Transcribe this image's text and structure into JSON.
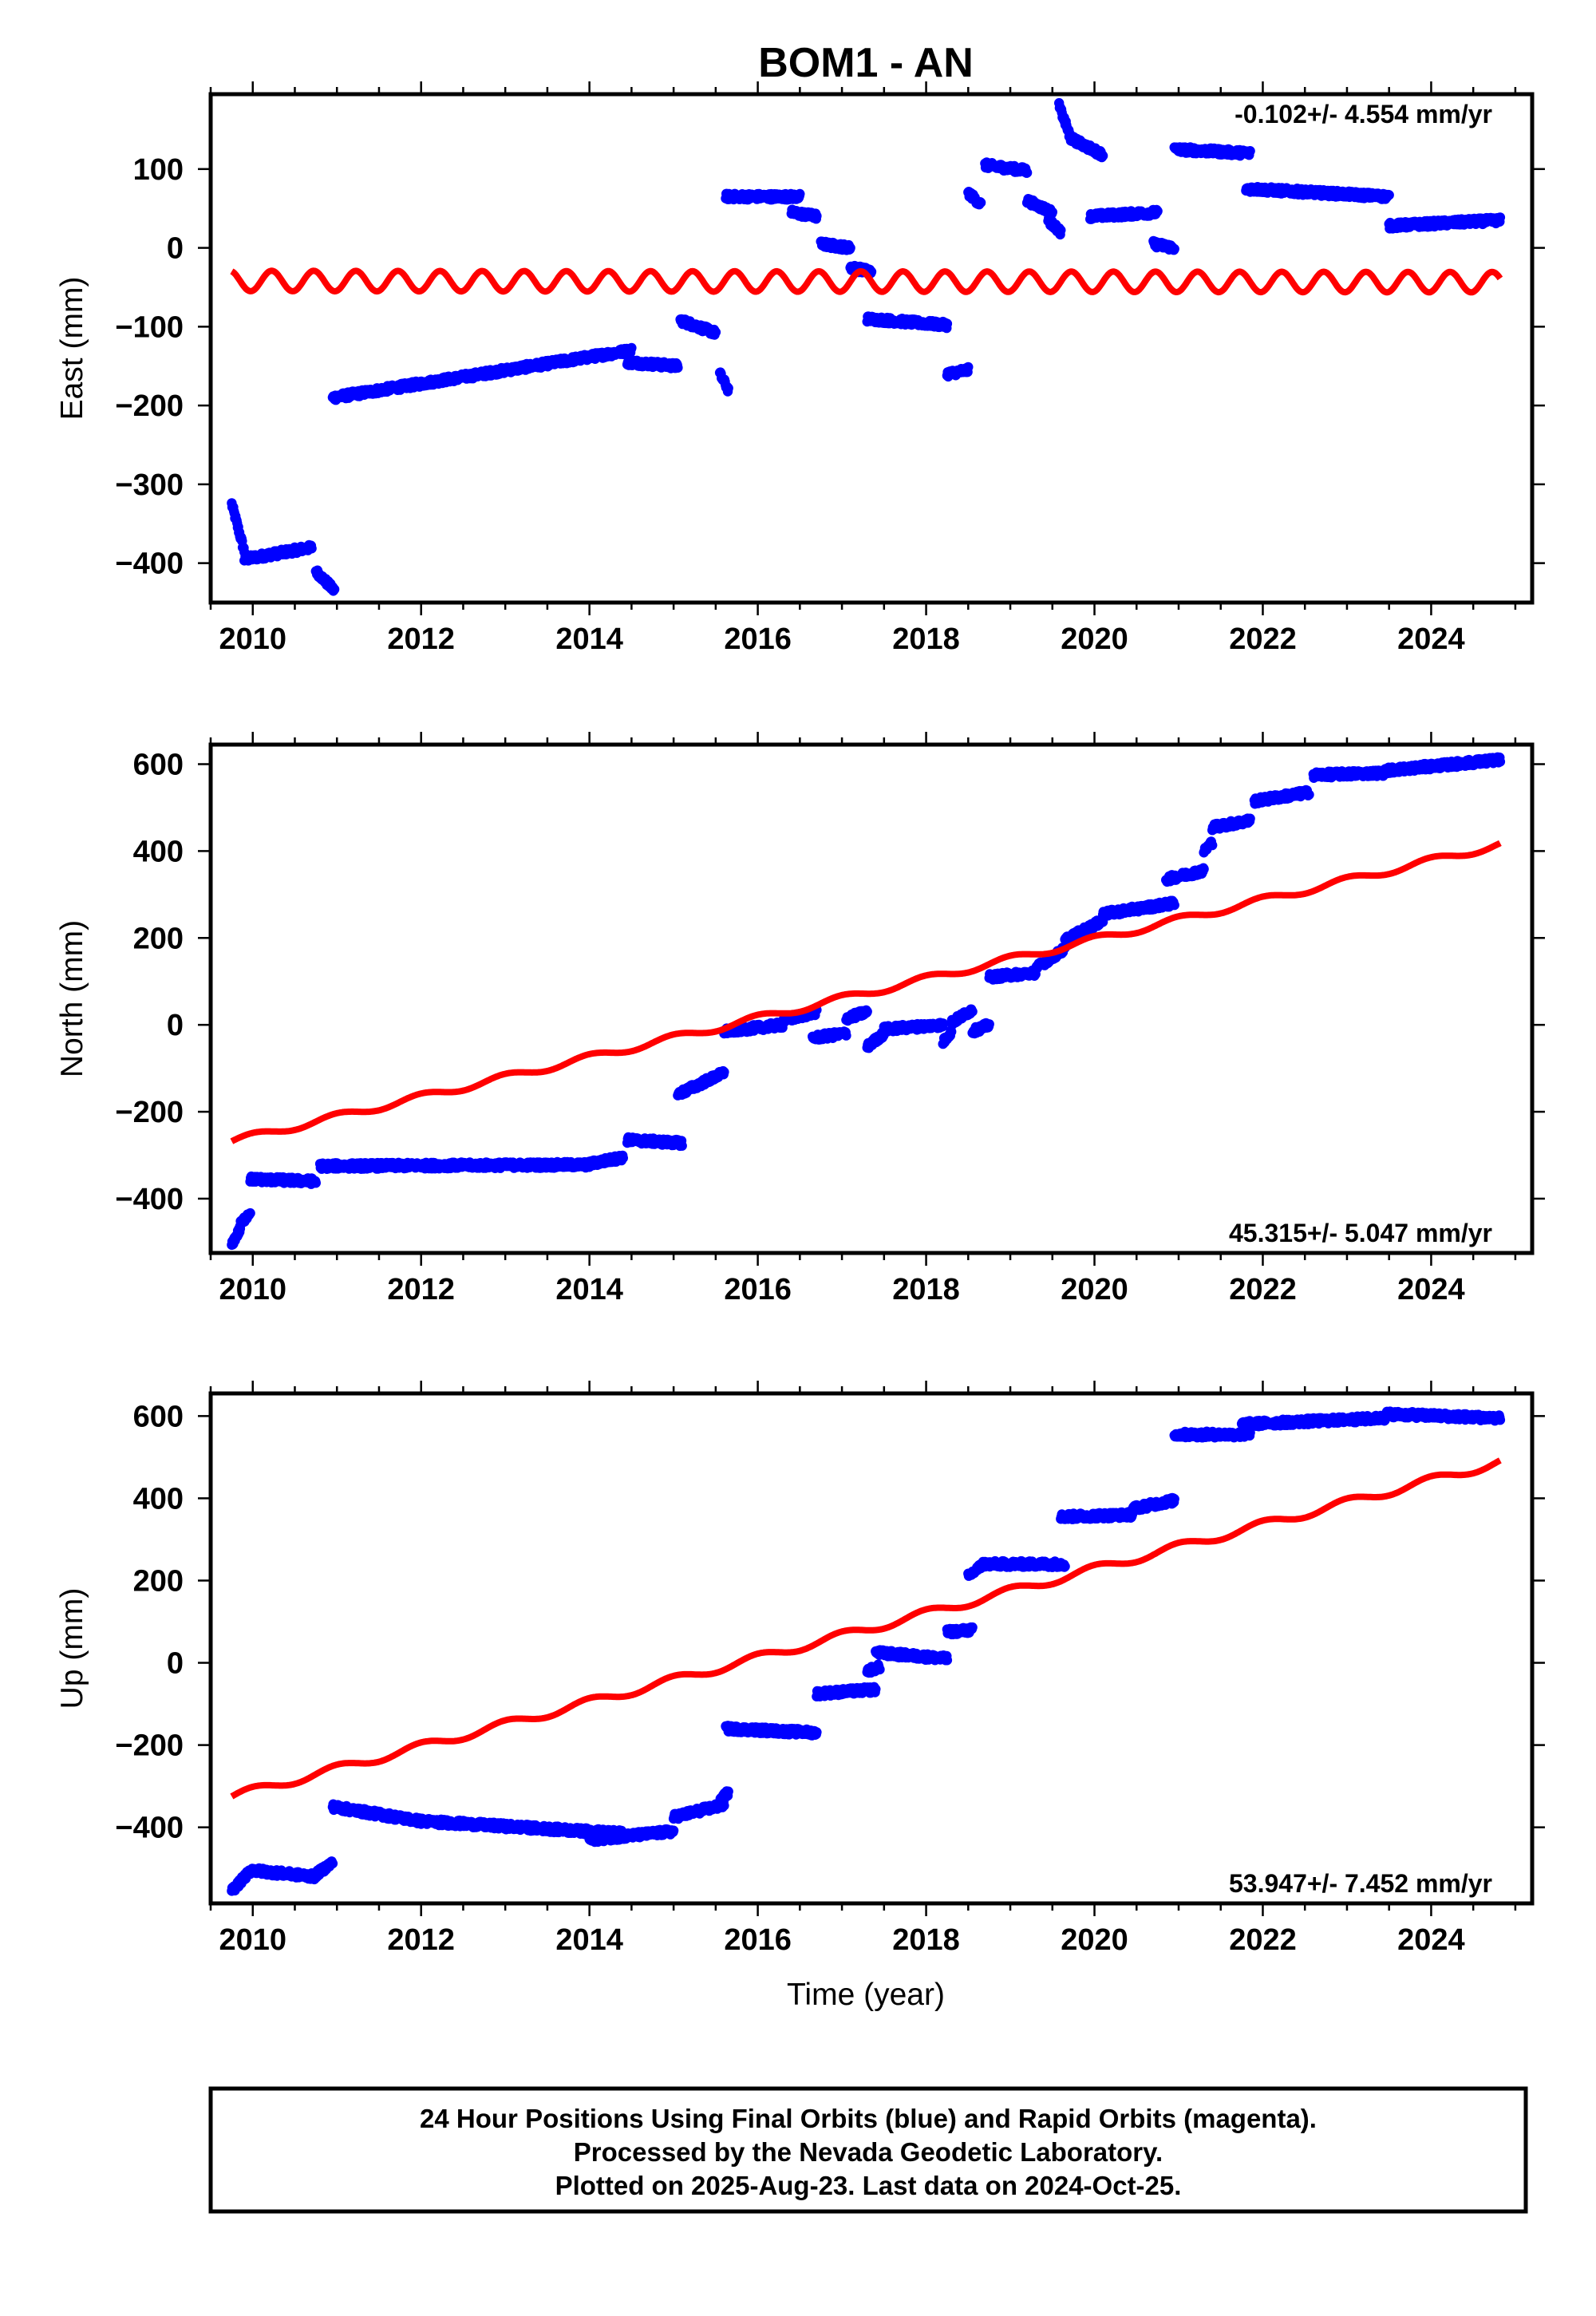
{
  "title": "BOM1 - AN",
  "colors": {
    "observed": "#0000ff",
    "model": "#ff0000",
    "frame": "#000000"
  },
  "xlabel": "Time (year)",
  "footer": {
    "line1": "24 Hour Positions Using Final Orbits (blue) and Rapid Orbits (magenta).",
    "line2": "Processed by the Nevada Geodetic Laboratory.",
    "line3": "Plotted on 2025-Aug-23. Last data on 2024-Oct-25."
  },
  "chart_data": [
    {
      "type": "scatter",
      "component": "East",
      "ylabel": "East (mm)",
      "rate": "-0.102+/- 4.554 mm/yr",
      "rate_position": "top-right",
      "xlim": [
        2009.5,
        2025.2
      ],
      "ylim": [
        -450,
        195
      ],
      "xticks": [
        2010,
        2012,
        2014,
        2016,
        2018,
        2020,
        2022,
        2024
      ],
      "xticklabels": [
        "2010",
        "2012",
        "2014",
        "2016",
        "2018",
        "2020",
        "2022",
        "2024"
      ],
      "yticks": [
        100,
        0,
        -100,
        -200,
        -300,
        -400
      ],
      "yticklabels": [
        "100",
        "0",
        "−100",
        "−200",
        "−300",
        "−400"
      ],
      "model": {
        "intercept": -42,
        "slope": -0.102,
        "t0": 2009.75,
        "t1": 2024.82,
        "amp": 13,
        "period": 0.5,
        "phase": 0.3
      },
      "series": [
        {
          "name": "observed",
          "segments": [
            [
              2009.75,
              -325,
              2009.9,
              -385
            ],
            [
              2009.9,
              -395,
              2010.7,
              -380
            ],
            [
              2010.75,
              -410,
              2010.97,
              -435
            ],
            [
              2010.95,
              -190,
              2014.5,
              -130
            ],
            [
              2014.45,
              -145,
              2015.05,
              -150
            ],
            [
              2015.08,
              -92,
              2015.5,
              -108
            ],
            [
              2015.55,
              -160,
              2015.65,
              -180
            ],
            [
              2015.62,
              65,
              2016.5,
              65
            ],
            [
              2016.4,
              45,
              2016.7,
              40
            ],
            [
              2016.75,
              5,
              2017.1,
              0
            ],
            [
              2017.1,
              -25,
              2017.35,
              -30
            ],
            [
              2017.3,
              -90,
              2018.25,
              -98
            ],
            [
              2018.25,
              -160,
              2018.5,
              -155
            ],
            [
              2018.5,
              70,
              2018.65,
              55
            ],
            [
              2018.7,
              105,
              2019.2,
              98
            ],
            [
              2019.2,
              60,
              2019.5,
              45
            ],
            [
              2019.45,
              35,
              2019.6,
              20
            ],
            [
              2019.58,
              180,
              2019.7,
              145
            ],
            [
              2019.7,
              140,
              2020.1,
              118
            ],
            [
              2019.95,
              40,
              2020.75,
              45
            ],
            [
              2020.7,
              5,
              2020.95,
              0
            ],
            [
              2020.95,
              125,
              2021.85,
              120
            ],
            [
              2021.8,
              75,
              2023.5,
              65
            ],
            [
              2023.5,
              28,
              2024.82,
              35
            ]
          ]
        }
      ]
    },
    {
      "type": "scatter",
      "component": "North",
      "ylabel": "North (mm)",
      "rate": "45.315+/- 5.047 mm/yr",
      "rate_position": "bottom-right",
      "xlim": [
        2009.5,
        2025.2
      ],
      "ylim": [
        -525,
        645
      ],
      "xticks": [
        2010,
        2012,
        2014,
        2016,
        2018,
        2020,
        2022,
        2024
      ],
      "xticklabels": [
        "2010",
        "2012",
        "2014",
        "2016",
        "2018",
        "2020",
        "2022",
        "2024"
      ],
      "yticks": [
        600,
        400,
        200,
        0,
        -200,
        -400
      ],
      "yticklabels": [
        "600",
        "400",
        "200",
        "0",
        "−200",
        "−400"
      ],
      "model": {
        "intercept": -268,
        "slope": 45.315,
        "t0": 2009.75,
        "t1": 2024.82,
        "amp": 8,
        "period": 1.0,
        "phase": 0.0
      },
      "series": [
        {
          "name": "observed",
          "segments": [
            [
              2009.75,
              -505,
              2009.85,
              -470
            ],
            [
              2009.85,
              -460,
              2009.97,
              -430
            ],
            [
              2009.97,
              -355,
              2010.75,
              -360
            ],
            [
              2010.8,
              -325,
              2014.0,
              -322
            ],
            [
              2014.0,
              -320,
              2014.4,
              -305
            ],
            [
              2014.45,
              -265,
              2015.1,
              -272
            ],
            [
              2015.05,
              -160,
              2015.6,
              -110
            ],
            [
              2015.6,
              -15,
              2016.3,
              0
            ],
            [
              2016.3,
              10,
              2016.7,
              30
            ],
            [
              2016.65,
              -30,
              2017.05,
              -20
            ],
            [
              2017.05,
              15,
              2017.3,
              30
            ],
            [
              2017.3,
              -50,
              2017.5,
              -20
            ],
            [
              2017.5,
              -10,
              2018.2,
              0
            ],
            [
              2018.2,
              -40,
              2018.3,
              -15
            ],
            [
              2018.3,
              5,
              2018.55,
              35
            ],
            [
              2018.55,
              -15,
              2018.75,
              0
            ],
            [
              2018.75,
              110,
              2019.3,
              120
            ],
            [
              2019.3,
              130,
              2019.65,
              175
            ],
            [
              2019.65,
              195,
              2020.1,
              240
            ],
            [
              2020.1,
              255,
              2020.95,
              280
            ],
            [
              2020.85,
              335,
              2021.3,
              355
            ],
            [
              2021.3,
              400,
              2021.4,
              420
            ],
            [
              2021.4,
              455,
              2021.85,
              470
            ],
            [
              2021.9,
              515,
              2022.55,
              535
            ],
            [
              2022.6,
              575,
              2023.45,
              580
            ],
            [
              2023.45,
              585,
              2024.82,
              610
            ]
          ]
        }
      ]
    },
    {
      "type": "scatter",
      "component": "Up",
      "ylabel": "Up (mm)",
      "rate": "53.947+/- 7.452 mm/yr",
      "rate_position": "bottom-right",
      "xlim": [
        2009.5,
        2025.2
      ],
      "ylim": [
        -585,
        655
      ],
      "xticks": [
        2010,
        2012,
        2014,
        2016,
        2018,
        2020,
        2022,
        2024
      ],
      "xticklabels": [
        "2010",
        "2012",
        "2014",
        "2016",
        "2018",
        "2020",
        "2022",
        "2024"
      ],
      "yticks": [
        600,
        400,
        200,
        0,
        -200,
        -400
      ],
      "yticklabels": [
        "600",
        "400",
        "200",
        "0",
        "−200",
        "−400"
      ],
      "model": {
        "intercept": -325,
        "slope": 53.947,
        "t0": 2009.75,
        "t1": 2024.82,
        "amp": 10,
        "period": 1.0,
        "phase": 0.0
      },
      "series": [
        {
          "name": "observed",
          "segments": [
            [
              2009.75,
              -555,
              2010.0,
              -500
            ],
            [
              2010.0,
              -505,
              2010.75,
              -520
            ],
            [
              2010.75,
              -515,
              2010.95,
              -485
            ],
            [
              2010.95,
              -350,
              2012.0,
              -385
            ],
            [
              2012.0,
              -385,
              2014.4,
              -415
            ],
            [
              2014.0,
              -430,
              2015.0,
              -410
            ],
            [
              2015.0,
              -375,
              2015.6,
              -345
            ],
            [
              2015.55,
              -335,
              2015.65,
              -315
            ],
            [
              2015.62,
              -160,
              2016.7,
              -170
            ],
            [
              2016.7,
              -75,
              2017.4,
              -65
            ],
            [
              2017.3,
              -20,
              2017.45,
              -10
            ],
            [
              2017.4,
              25,
              2018.25,
              10
            ],
            [
              2018.25,
              75,
              2018.55,
              80
            ],
            [
              2018.5,
              210,
              2018.65,
              235
            ],
            [
              2018.65,
              240,
              2019.65,
              240
            ],
            [
              2019.6,
              355,
              2020.45,
              360
            ],
            [
              2020.45,
              375,
              2020.95,
              395
            ],
            [
              2020.95,
              555,
              2021.85,
              555
            ],
            [
              2021.75,
              580,
              2023.45,
              595
            ],
            [
              2023.45,
              605,
              2024.82,
              595
            ]
          ]
        }
      ]
    }
  ]
}
